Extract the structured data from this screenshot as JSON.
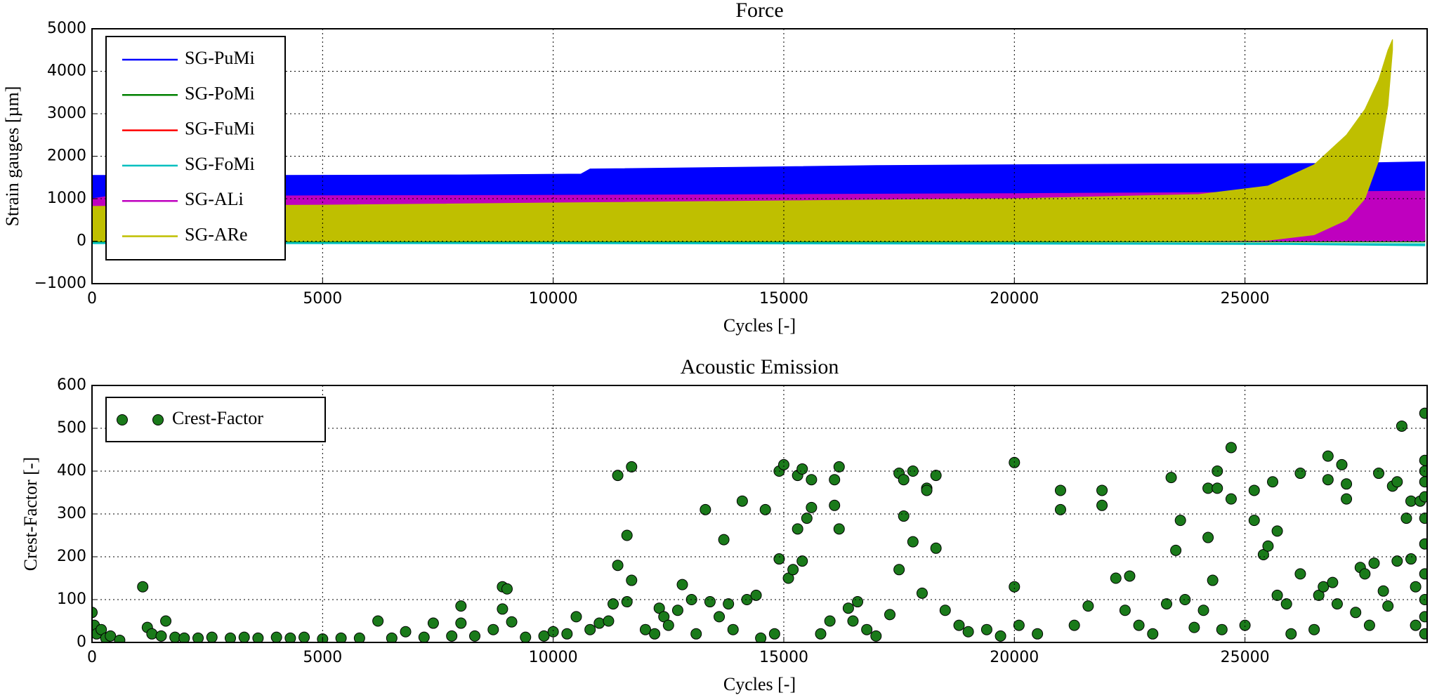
{
  "chart_data": [
    {
      "type": "band",
      "title": "Force",
      "xlabel": "Cycles [-]",
      "ylabel": "Strain gauges [µm]",
      "xlim": [
        0,
        28950
      ],
      "xticks": [
        0,
        5000,
        10000,
        15000,
        20000,
        25000
      ],
      "ylim": [
        -1000,
        5000
      ],
      "yticks": [
        {
          "value": -1000,
          "label": "−1000"
        },
        0,
        1000,
        2000,
        3000,
        4000,
        5000
      ],
      "grid": true,
      "legend": "upper left",
      "series": [
        {
          "name": "SG-PuMi",
          "color": "#0000ff",
          "x": [
            0,
            4000,
            8000,
            10600,
            10800,
            14000,
            17000,
            20000,
            24000,
            27000,
            28900
          ],
          "values": [
            1550,
            1550,
            1560,
            1580,
            1700,
            1740,
            1780,
            1800,
            1820,
            1830,
            1870
          ],
          "lower": [
            0,
            0,
            0,
            0,
            0,
            0,
            0,
            0,
            0,
            0,
            0
          ]
        },
        {
          "name": "SG-PoMi",
          "color": "#008000",
          "x": [
            0,
            10000,
            20000,
            28900
          ],
          "values": [
            20,
            20,
            20,
            30
          ],
          "lower": [
            -20,
            -20,
            -20,
            -20
          ]
        },
        {
          "name": "SG-FuMi",
          "color": "#ff0000",
          "x": [
            0,
            10000,
            22000,
            25000,
            27000,
            28900
          ],
          "values": [
            30,
            30,
            50,
            80,
            120,
            160
          ],
          "lower": [
            0,
            0,
            0,
            0,
            0,
            0
          ]
        },
        {
          "name": "SG-FoMi",
          "color": "#00bfbf",
          "x": [
            0,
            10000,
            20000,
            26000,
            28900
          ],
          "values": [
            -30,
            -30,
            -40,
            -50,
            -60
          ],
          "lower": [
            -60,
            -60,
            -70,
            -80,
            -110
          ]
        },
        {
          "name": "SG-ALi",
          "color": "#bf00bf",
          "x": [
            0,
            300,
            5000,
            10000,
            15000,
            20000,
            25000,
            28900
          ],
          "values": [
            1000,
            1050,
            1070,
            1080,
            1100,
            1120,
            1150,
            1180
          ],
          "lower": [
            0,
            0,
            0,
            0,
            0,
            0,
            0,
            0
          ]
        },
        {
          "name": "SG-ARe",
          "color": "#bfbf00",
          "x": [
            0,
            5000,
            10000,
            15000,
            20000,
            24000,
            25500,
            26500,
            27200,
            27600,
            27900,
            28100,
            28200
          ],
          "values": [
            820,
            850,
            900,
            950,
            1000,
            1100,
            1300,
            1800,
            2500,
            3100,
            3800,
            4500,
            4750
          ],
          "lower": [
            0,
            0,
            0,
            0,
            0,
            0,
            20,
            150,
            500,
            1000,
            1900,
            3200,
            4500
          ]
        }
      ]
    },
    {
      "type": "scatter",
      "title": "Acoustic Emission",
      "xlabel": "Cycles [-]",
      "ylabel": "Crest-Factor [-]",
      "xlim": [
        0,
        28950
      ],
      "xticks": [
        0,
        5000,
        10000,
        15000,
        20000,
        25000
      ],
      "ylim": [
        0,
        600
      ],
      "yticks": [
        0,
        100,
        200,
        300,
        400,
        500,
        600
      ],
      "grid": true,
      "legend": "upper left",
      "series": [
        {
          "name": "Crest-Factor",
          "color": "#1a7a1a",
          "x": [
            0,
            50,
            100,
            200,
            300,
            400,
            600,
            1100,
            1200,
            1300,
            1500,
            1600,
            1800,
            2000,
            2300,
            2600,
            3000,
            3300,
            3600,
            4000,
            4300,
            4600,
            5000,
            5400,
            5800,
            6200,
            6500,
            6800,
            7200,
            7400,
            7800,
            8000,
            8000,
            8300,
            8700,
            8900,
            8900,
            9000,
            9100,
            9400,
            9800,
            10000,
            10300,
            10500,
            10800,
            11000,
            11200,
            11300,
            11400,
            11400,
            11600,
            11600,
            11700,
            11700,
            12000,
            12200,
            12300,
            12400,
            12500,
            12700,
            12800,
            13000,
            13100,
            13300,
            13400,
            13600,
            13700,
            13800,
            13900,
            14100,
            14200,
            14400,
            14500,
            14600,
            14800,
            14900,
            14900,
            15000,
            15100,
            15200,
            15300,
            15300,
            15400,
            15400,
            15500,
            15600,
            15600,
            15800,
            16000,
            16100,
            16100,
            16200,
            16200,
            16400,
            16500,
            16600,
            16800,
            17000,
            17300,
            17500,
            17500,
            17600,
            17600,
            17800,
            17800,
            18000,
            18100,
            18100,
            18300,
            18300,
            18500,
            18800,
            19000,
            19400,
            19700,
            20000,
            20000,
            20100,
            20500,
            21000,
            21000,
            21300,
            21600,
            21900,
            21900,
            22200,
            22500,
            22400,
            22700,
            23000,
            23300,
            23400,
            23500,
            23600,
            23700,
            23900,
            24100,
            24200,
            24200,
            24300,
            24400,
            24400,
            24500,
            24700,
            24700,
            25000,
            25200,
            25200,
            25400,
            25500,
            25600,
            25700,
            25700,
            25900,
            26000,
            26200,
            26200,
            26500,
            26600,
            26700,
            26800,
            26800,
            26900,
            27000,
            27100,
            27200,
            27200,
            27400,
            27500,
            27600,
            27700,
            27800,
            27900,
            28000,
            28100,
            28200,
            28300,
            28300,
            28400,
            28500,
            28600,
            28600,
            28700,
            28700,
            28800,
            28900,
            28900,
            28900,
            28900,
            28900,
            28900,
            28900,
            28900,
            28900,
            28900,
            28900
          ],
          "values": [
            70,
            40,
            20,
            30,
            10,
            15,
            5,
            130,
            35,
            20,
            15,
            50,
            12,
            10,
            10,
            12,
            10,
            12,
            10,
            12,
            10,
            12,
            8,
            10,
            10,
            50,
            10,
            25,
            12,
            45,
            15,
            85,
            45,
            15,
            30,
            130,
            78,
            125,
            48,
            12,
            15,
            25,
            20,
            60,
            30,
            45,
            50,
            90,
            180,
            390,
            95,
            250,
            410,
            145,
            30,
            20,
            80,
            60,
            40,
            75,
            135,
            100,
            20,
            310,
            95,
            60,
            240,
            90,
            30,
            330,
            100,
            110,
            10,
            310,
            20,
            400,
            195,
            415,
            150,
            170,
            390,
            265,
            405,
            190,
            290,
            315,
            380,
            20,
            50,
            380,
            320,
            410,
            265,
            80,
            50,
            95,
            30,
            15,
            65,
            395,
            170,
            380,
            295,
            400,
            235,
            115,
            360,
            355,
            390,
            220,
            75,
            40,
            25,
            30,
            15,
            420,
            130,
            40,
            20,
            355,
            310,
            40,
            85,
            355,
            320,
            150,
            155,
            75,
            40,
            20,
            90,
            385,
            215,
            285,
            100,
            35,
            75,
            360,
            245,
            145,
            400,
            360,
            30,
            455,
            335,
            40,
            355,
            285,
            205,
            225,
            375,
            260,
            110,
            90,
            20,
            395,
            160,
            30,
            110,
            130,
            380,
            435,
            140,
            90,
            415,
            335,
            370,
            70,
            175,
            160,
            40,
            185,
            395,
            120,
            85,
            365,
            375,
            190,
            505,
            290,
            330,
            195,
            40,
            130,
            330,
            535,
            425,
            400,
            375,
            340,
            290,
            230,
            160,
            100,
            60,
            20
          ]
        }
      ]
    }
  ]
}
